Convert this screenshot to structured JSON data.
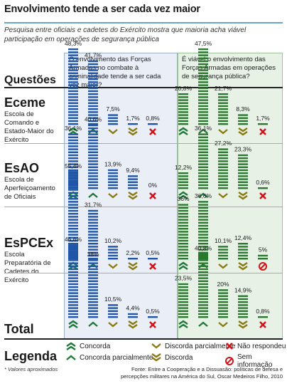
{
  "title": "Envolvimento tende a ser cada vez maior",
  "subtitle": "Pesquisa entre oficiais e cadetes do Exército mostra que maioria acha viável participação em operações de segurança pública",
  "questions_heading": "Questões",
  "questions": [
    "O envolvimento das Forças Armadas no combate à criminalidade tende a ser cada vez maior?",
    "É viável o envolvimento das Forças Armadas em operações de segurança pública?"
  ],
  "total_label": "Total",
  "legend_heading": "Legenda",
  "footnote": "* Valores aproximados",
  "source": "Fonte: Entre a Cooperação e a Dissuasão: políticas de defesa e percepções militares na América do Sul, Oscar Medeiros Filho, 2010",
  "colors": {
    "left_bar": "#1f56a8",
    "right_bar": "#2a7a2e",
    "concorda": "#1f7a3a",
    "discorda": "#8a7a12",
    "nao_respondeu": "#d0141c",
    "left_panel_bg": "#e9eef7",
    "right_panel_bg": "#e7f1e6"
  },
  "legend": [
    {
      "label": "Concorda",
      "icon": "double-chevron-up-icon"
    },
    {
      "label": "Concorda parcialmente",
      "icon": "chevron-up-icon"
    },
    {
      "label": "Discorda parcialmente",
      "icon": "chevron-down-icon"
    },
    {
      "label": "Discorda",
      "icon": "double-chevron-down-icon"
    },
    {
      "label": "Não respondeu",
      "icon": "x-circle-icon"
    },
    {
      "label": "Sem informação",
      "icon": "no-entry-icon"
    }
  ],
  "chart_data": {
    "type": "bar",
    "categories": [
      "Concorda",
      "Concorda parcialmente",
      "Discorda parcialmente",
      "Discorda",
      "Não respondeu"
    ],
    "groups": [
      {
        "code": "Eceme",
        "name": "Escola de Comando e Estado-Maior do Exército",
        "q1": {
          "values": [
            48.3,
            41.7,
            7.5,
            1.7,
            0.8
          ],
          "labels": [
            "48,3%",
            "41,7%",
            "7,5%",
            "1,7%",
            "0,8%"
          ]
        },
        "q2": {
          "values": [
            20.8,
            47.5,
            21.7,
            8.3,
            1.7
          ],
          "labels": [
            "20,8%",
            "47,5%",
            "21,7%",
            "8,3%",
            "1,7%"
          ]
        }
      },
      {
        "code": "EsAO",
        "name": "Escola de Aperfeiçoamento de Oficiais",
        "q1": {
          "values": [
            36.1,
            40.6,
            13.9,
            9.4,
            0
          ],
          "labels": [
            "36,1%",
            "40,6%",
            "13,9%",
            "9,4%",
            "0%"
          ]
        },
        "q2": {
          "values": [
            12.2,
            36.1,
            27.2,
            23.3,
            0.6
          ],
          "labels": [
            "12,2%",
            "36,1%",
            "27,2%",
            "23,3%",
            "0,6%"
          ]
        }
      },
      {
        "code": "EsPCEx",
        "name": "Escola Preparatória de Cadetes do Exército",
        "q1": {
          "values": [
            55.4,
            31.7,
            10.2,
            2.2,
            0.5
          ],
          "labels": [
            "55,4%",
            "31,7%",
            "10,2%",
            "2,2%",
            "0,5%"
          ]
        },
        "q2": {
          "values": [
            36,
            36.6,
            10.1,
            12.4,
            5
          ],
          "labels": [
            "36%",
            "36,6%",
            "10,1%",
            "12,4%",
            "5%"
          ],
          "last_icon": "no-entry-icon"
        }
      },
      {
        "code": "Total",
        "name": "",
        "q1": {
          "values": [
            46.6,
            38,
            10.5,
            4.4,
            0.5
          ],
          "labels": [
            "46,6%",
            "38%",
            "10,5%",
            "4,4%",
            "0,5%"
          ]
        },
        "q2": {
          "values": [
            23.5,
            40.8,
            20,
            14.9,
            0.8
          ],
          "labels": [
            "23,5%",
            "40,8%",
            "20%",
            "14,9%",
            "0,8%"
          ]
        }
      }
    ],
    "ylim": [
      0,
      60
    ]
  }
}
